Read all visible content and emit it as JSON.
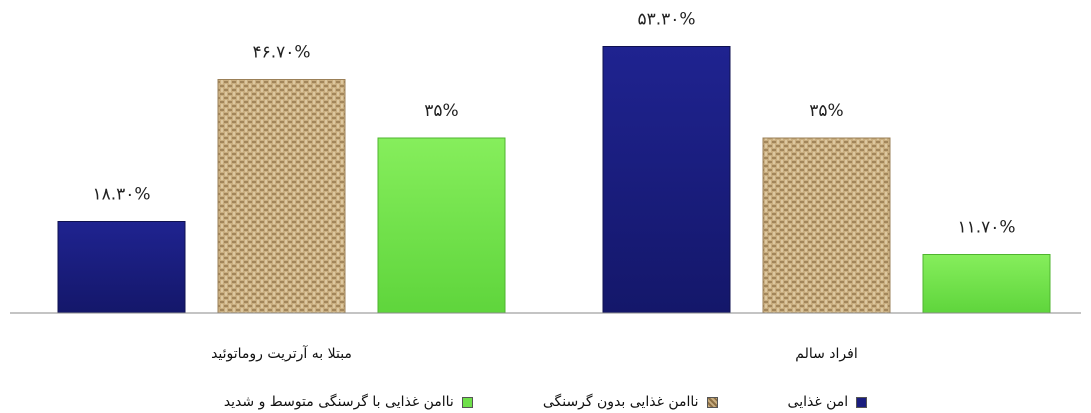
{
  "chart_data": {
    "type": "bar",
    "categories": [
      "مبتلا به آرتریت روماتوئید",
      "افراد سالم"
    ],
    "series": [
      {
        "name": "امن غذایی",
        "values": [
          18.3,
          53.3
        ],
        "labels": [
          "۱۸.۳۰%",
          "۵۳.۳۰%"
        ],
        "color": "#1a1d7e"
      },
      {
        "name": "ناامن غذایی بدون گرسنگی",
        "values": [
          46.7,
          35
        ],
        "labels": [
          "۴۶.۷۰%",
          "۳۵%"
        ],
        "color": "#c8ad7f"
      },
      {
        "name": "ناامن غذایی با گرسنگی متوسط و شدید",
        "values": [
          35,
          11.7
        ],
        "labels": [
          "۳۵%",
          "۱۱.۷۰%"
        ],
        "color": "#6fe04a"
      }
    ],
    "ylim": [
      0,
      60
    ],
    "grid": false,
    "legend_position": "bottom"
  }
}
